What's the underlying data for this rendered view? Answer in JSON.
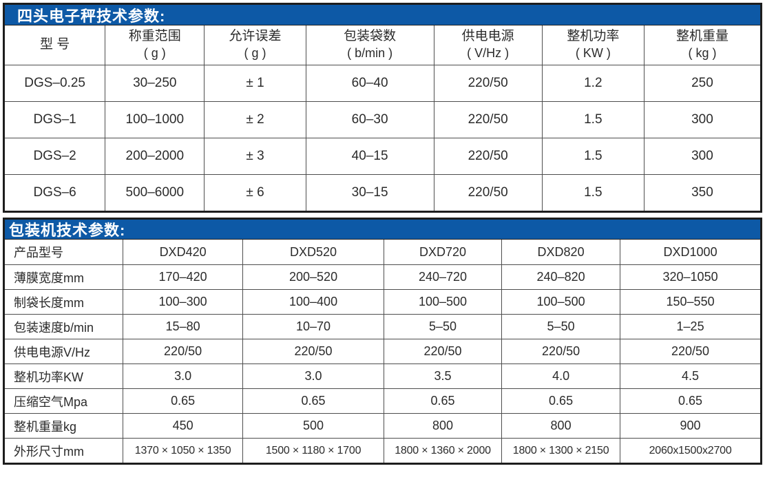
{
  "page": {
    "accent_blue": "#0d59a6",
    "border_dark": "#1d1d1d",
    "grid_line": "#4d4d4d",
    "text_color": "#2b2b2b"
  },
  "scale_table": {
    "title": "四头电子秤技术参数:",
    "columns": [
      {
        "name": "型  号",
        "unit": ""
      },
      {
        "name": "称重范围",
        "unit": "( g )"
      },
      {
        "name": "允许误差",
        "unit": "( g )"
      },
      {
        "name": "包装袋数",
        "unit": "( b/min )"
      },
      {
        "name": "供电电源",
        "unit": "( V/Hz )"
      },
      {
        "name": "整机功率",
        "unit": "( KW )"
      },
      {
        "name": "整机重量",
        "unit": "( kg )"
      }
    ],
    "rows": [
      [
        "DGS–0.25",
        "30–250",
        "± 1",
        "60–40",
        "220/50",
        "1.2",
        "250"
      ],
      [
        "DGS–1",
        "100–1000",
        "± 2",
        "60–30",
        "220/50",
        "1.5",
        "300"
      ],
      [
        "DGS–2",
        "200–2000",
        "± 3",
        "40–15",
        "220/50",
        "1.5",
        "300"
      ],
      [
        "DGS–6",
        "500–6000",
        "± 6",
        "30–15",
        "220/50",
        "1.5",
        "350"
      ]
    ]
  },
  "packer_table": {
    "title": "包装机技术参数:",
    "rows": [
      [
        "产品型号",
        "DXD420",
        "DXD520",
        "DXD720",
        "DXD820",
        "DXD1000"
      ],
      [
        "薄膜宽度mm",
        "170–420",
        "200–520",
        "240–720",
        "240–820",
        "320–1050"
      ],
      [
        "制袋长度mm",
        "100–300",
        "100–400",
        "100–500",
        "100–500",
        "150–550"
      ],
      [
        "包装速度b/min",
        "15–80",
        "10–70",
        "5–50",
        "5–50",
        "1–25"
      ],
      [
        "供电电源V/Hz",
        "220/50",
        "220/50",
        "220/50",
        "220/50",
        "220/50"
      ],
      [
        "整机功率KW",
        "3.0",
        "3.0",
        "3.5",
        "4.0",
        "4.5"
      ],
      [
        "压缩空气Mpa",
        "0.65",
        "0.65",
        "0.65",
        "0.65",
        "0.65"
      ],
      [
        "整机重量kg",
        "450",
        "500",
        "800",
        "800",
        "900"
      ],
      [
        "外形尺寸mm",
        "1370 × 1050 × 1350",
        "1500 × 1180 × 1700",
        "1800 × 1360 × 2000",
        "1800 × 1300 × 2150",
        "2060x1500x2700"
      ]
    ]
  }
}
